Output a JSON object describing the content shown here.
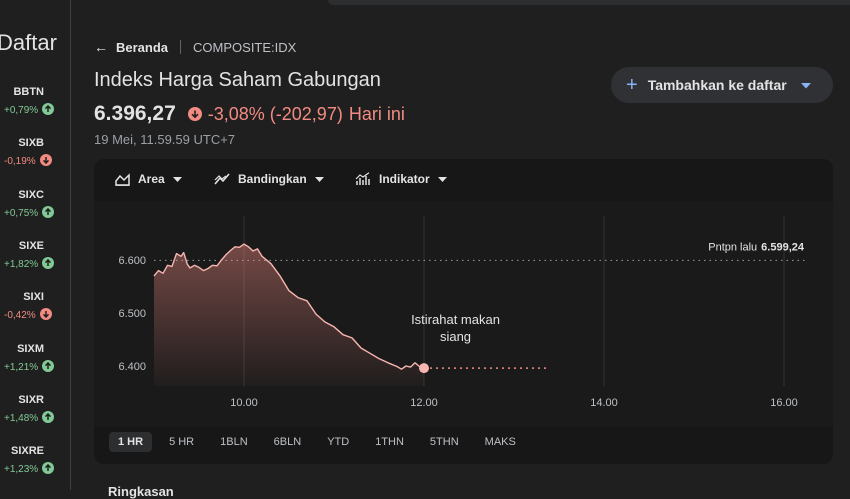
{
  "sidebar": {
    "title": "Daftar",
    "items": [
      {
        "symbol": "BBTN",
        "change": "+0,79%",
        "dir": "up"
      },
      {
        "symbol": "SIXB",
        "change": "-0,19%",
        "dir": "down"
      },
      {
        "symbol": "SIXC",
        "change": "+0,75%",
        "dir": "up"
      },
      {
        "symbol": "SIXE",
        "change": "+1,82%",
        "dir": "up"
      },
      {
        "symbol": "SIXI",
        "change": "-0,42%",
        "dir": "down"
      },
      {
        "symbol": "SIXM",
        "change": "+1,21%",
        "dir": "up"
      },
      {
        "symbol": "SIXR",
        "change": "+1,48%",
        "dir": "up"
      },
      {
        "symbol": "SIXRE",
        "change": "+1,23%",
        "dir": "up"
      }
    ]
  },
  "header": {
    "back_label": "Beranda",
    "ticker": "COMPOSITE:IDX",
    "title": "Indeks Harga Saham Gabungan",
    "price": "6.396,27",
    "change": "-3,08% (-202,97)",
    "change_suffix": "Hari ini",
    "timestamp": "19 Mei, 11.59.59 UTC+7",
    "add_button": "Tambahkan ke daftar"
  },
  "toolbar": {
    "area_label": "Area",
    "compare_label": "Bandingkan",
    "indicator_label": "Indikator"
  },
  "ranges": [
    "1 HR",
    "5 HR",
    "1BLN",
    "6BLN",
    "YTD",
    "1THN",
    "5THN",
    "MAKS"
  ],
  "active_range": "1 HR",
  "footer": "Ringkasan",
  "colors": {
    "up": "#81c995",
    "down": "#f28b82",
    "accent": "#8ab4f8"
  },
  "chart_data": {
    "type": "area",
    "x_ticks": [
      "10.00",
      "12.00",
      "14.00",
      "16.00"
    ],
    "y_ticks": [
      "6.600",
      "6.500",
      "6.400"
    ],
    "ylim": [
      6380,
      6640
    ],
    "xlim": [
      9,
      16.5
    ],
    "prev_close_label": "Pntpn lalu",
    "prev_close_value": "6.599,24",
    "prev_close": 6599.24,
    "annotation": "Istirahat makan siang",
    "break_start": 12.0,
    "break_end": 13.4,
    "last_value": 6396.27,
    "x": [
      9.0,
      9.05,
      9.1,
      9.15,
      9.2,
      9.25,
      9.3,
      9.33,
      9.37,
      9.4,
      9.45,
      9.5,
      9.55,
      9.6,
      9.65,
      9.7,
      9.75,
      9.8,
      9.85,
      9.9,
      9.95,
      10.0,
      10.05,
      10.1,
      10.15,
      10.2,
      10.3,
      10.4,
      10.5,
      10.6,
      10.7,
      10.8,
      10.9,
      11.0,
      11.1,
      11.2,
      11.3,
      11.4,
      11.5,
      11.6,
      11.7,
      11.75,
      11.8,
      11.85,
      11.9,
      11.95,
      12.0
    ],
    "y": [
      6570,
      6580,
      6575,
      6590,
      6588,
      6612,
      6607,
      6614,
      6592,
      6585,
      6590,
      6586,
      6580,
      6584,
      6590,
      6589,
      6600,
      6610,
      6618,
      6625,
      6624,
      6630,
      6625,
      6617,
      6621,
      6607,
      6593,
      6570,
      6542,
      6529,
      6523,
      6498,
      6483,
      6474,
      6459,
      6453,
      6434,
      6424,
      6414,
      6406,
      6399,
      6394,
      6400,
      6398,
      6406,
      6399,
      6396
    ]
  }
}
